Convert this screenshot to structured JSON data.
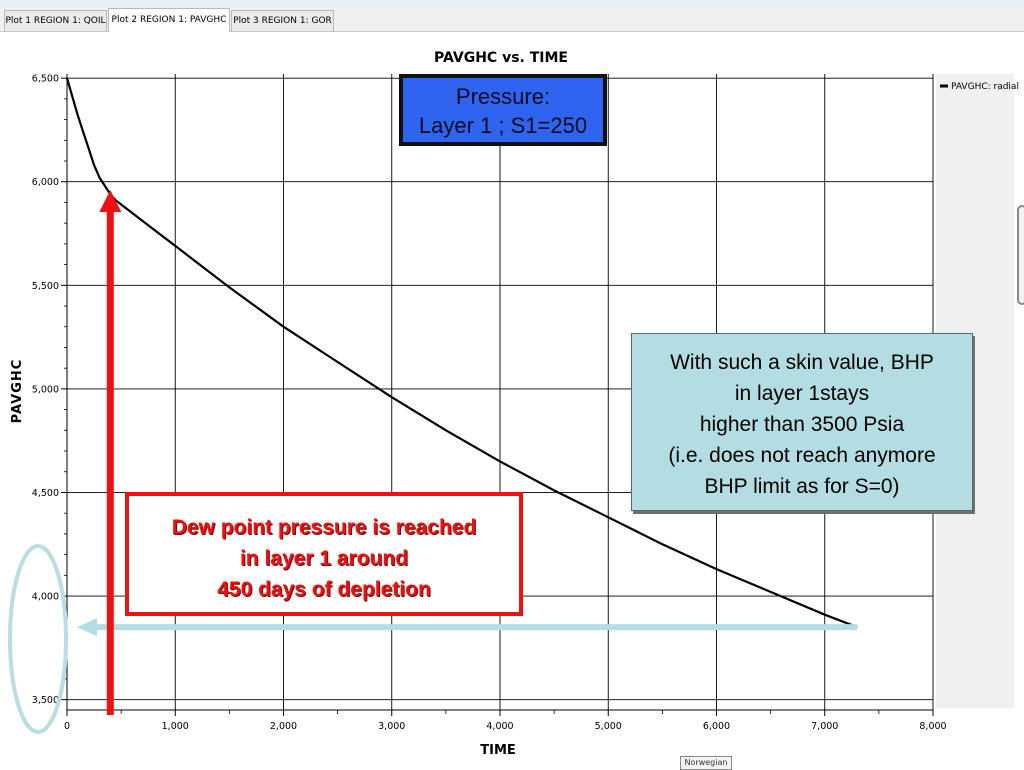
{
  "tabs": [
    {
      "label": "Plot 1  REGION 1: QOIL",
      "active": false
    },
    {
      "label": "Plot 2  REGION 1: PAVGHC",
      "active": true
    },
    {
      "label": "Plot 3  REGION 1: GOR",
      "active": false
    }
  ],
  "language_indicator": "Norwegian",
  "chart_data": {
    "type": "line",
    "title": "PAVGHC vs. TIME",
    "xlabel": "TIME",
    "ylabel": "PAVGHC",
    "xlim": [
      0,
      8000
    ],
    "ylim": [
      3450,
      6520
    ],
    "x_ticks": [
      0,
      1000,
      2000,
      3000,
      4000,
      5000,
      6000,
      7000,
      8000
    ],
    "x_tick_labels": [
      "0",
      "1,000",
      "2,000",
      "3,000",
      "4,000",
      "5,000",
      "6,000",
      "7,000",
      "8,000"
    ],
    "y_ticks": [
      3500,
      4000,
      4500,
      5000,
      5500,
      6000,
      6500
    ],
    "y_tick_labels": [
      "3,500",
      "4,000",
      "4,500",
      "5,000",
      "5,500",
      "6,000",
      "6,500"
    ],
    "grid": true,
    "legend_position": "top-right",
    "series": [
      {
        "name": "PAVGHC: radial",
        "color": "#000000",
        "x": [
          0,
          50,
          100,
          150,
          200,
          250,
          300,
          350,
          400,
          450,
          500,
          600,
          800,
          1000,
          1200,
          1500,
          2000,
          2500,
          3000,
          3500,
          4000,
          4500,
          5000,
          5500,
          6000,
          6500,
          7000,
          7300
        ],
        "y": [
          6500,
          6410,
          6320,
          6240,
          6160,
          6080,
          6020,
          5980,
          5940,
          5910,
          5890,
          5850,
          5770,
          5690,
          5610,
          5490,
          5300,
          5130,
          4960,
          4800,
          4650,
          4510,
          4380,
          4250,
          4130,
          4020,
          3910,
          3850
        ]
      }
    ],
    "annotations": {
      "pressure_box": {
        "lines": [
          "Pressure:",
          "Layer 1 ; S1=250"
        ],
        "color": "#2e64ef"
      },
      "skin_box": {
        "lines": [
          "With such a skin value, BHP",
          "in layer 1stays",
          "higher than 3500 Psia",
          "(i.e. does not reach anymore",
          "BHP limit as for S=0)"
        ],
        "color": "#b3dde2"
      },
      "dew_point_box": {
        "lines": [
          "Dew point pressure is reached",
          "in layer 1 around",
          "450 days of depletion"
        ],
        "color": "#ee1111"
      },
      "red_arrow": {
        "x": 400,
        "y_from": 3450,
        "y_to": 5960,
        "color": "#ee1111"
      },
      "teal_arrow": {
        "y": 3850,
        "x_from": 7300,
        "x_to": 0,
        "color": "#b3dde2"
      }
    }
  }
}
